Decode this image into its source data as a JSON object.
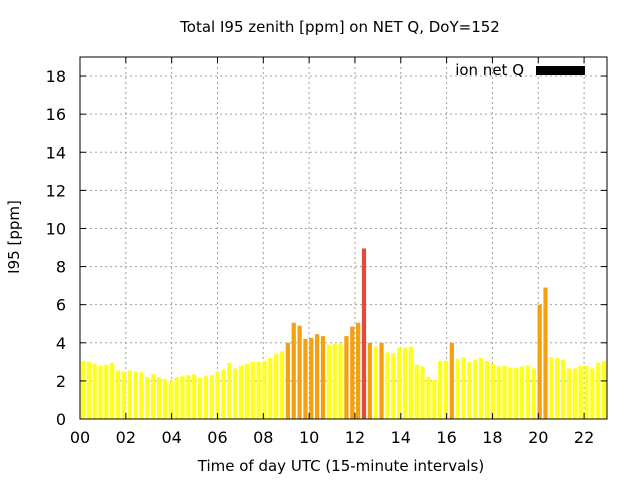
{
  "chart_data": {
    "type": "bar",
    "title": "Total I95 zenith [ppm] on NET Q, DoY=152",
    "xlabel": "Time of day UTC (15-minute intervals)",
    "ylabel": "I95 [ppm]",
    "ylim": [
      0,
      19
    ],
    "xlim": [
      0,
      23
    ],
    "yticks": [
      "0",
      "2",
      "4",
      "6",
      "8",
      "10",
      "12",
      "14",
      "16",
      "18"
    ],
    "xticks": [
      "00",
      "02",
      "04",
      "06",
      "08",
      "10",
      "12",
      "14",
      "16",
      "18",
      "20",
      "22"
    ],
    "grid": true,
    "legend": {
      "position": "top-right",
      "label": "ion net Q",
      "color": "#000000"
    },
    "colors": {
      "low": "#ffff1e",
      "mid": "#f5a00f",
      "high": "#e04b3c"
    },
    "values": [
      3.05,
      3.0,
      2.9,
      2.8,
      2.85,
      2.95,
      2.55,
      2.5,
      2.55,
      2.5,
      2.45,
      2.2,
      2.35,
      2.2,
      2.1,
      2.0,
      2.2,
      2.25,
      2.3,
      2.35,
      2.15,
      2.25,
      2.3,
      2.5,
      2.6,
      2.95,
      2.65,
      2.8,
      2.9,
      3.0,
      3.0,
      3.05,
      3.2,
      3.4,
      3.55,
      4.0,
      5.05,
      4.9,
      4.2,
      4.25,
      4.45,
      4.35,
      3.9,
      3.95,
      3.95,
      4.35,
      4.85,
      5.05,
      8.95,
      4.0,
      3.8,
      4.0,
      3.5,
      3.45,
      3.75,
      3.75,
      3.8,
      2.85,
      2.75,
      2.2,
      2.05,
      3.05,
      3.05,
      4.0,
      3.15,
      3.25,
      3.0,
      3.1,
      3.2,
      3.05,
      2.9,
      2.75,
      2.8,
      2.7,
      2.7,
      2.75,
      2.8,
      2.65,
      6.0,
      6.9,
      3.25,
      3.2,
      3.1,
      2.65,
      2.65,
      2.8,
      2.8,
      2.65,
      2.95,
      3.05
    ]
  }
}
